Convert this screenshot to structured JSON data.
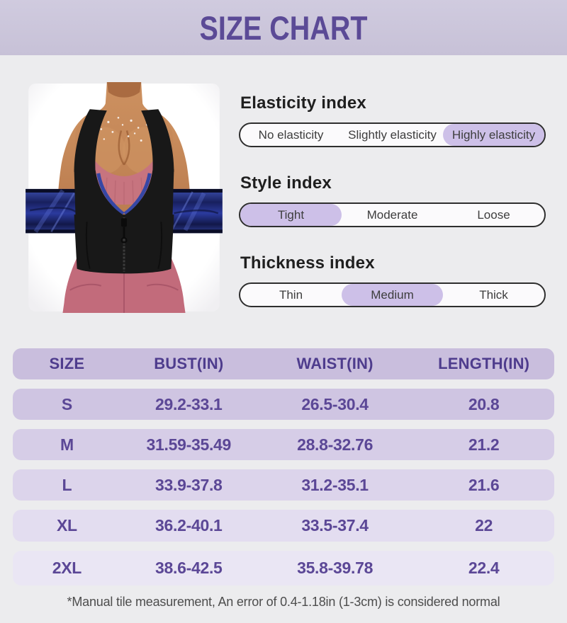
{
  "header": {
    "title": "SIZE CHART"
  },
  "product_photo": {
    "description": "woman wearing black zip-front sauna sweat vest over pink sports bra and leggings, blue satin waist band extended"
  },
  "indexes": [
    {
      "title": "Elasticity index",
      "options": [
        "No elasticity",
        "Slightly elasticity",
        "Highly elasticity"
      ],
      "selected": 2
    },
    {
      "title": "Style index",
      "options": [
        "Tight",
        "Moderate",
        "Loose"
      ],
      "selected": 0
    },
    {
      "title": "Thickness index",
      "options": [
        "Thin",
        "Medium",
        "Thick"
      ],
      "selected": 1
    }
  ],
  "size_table": {
    "columns": [
      "SIZE",
      "BUST(IN)",
      "WAIST(IN)",
      "LENGTH(IN)"
    ],
    "rows": [
      [
        "S",
        "29.2-33.1",
        "26.5-30.4",
        "20.8"
      ],
      [
        "M",
        "31.59-35.49",
        "28.8-32.76",
        "21.2"
      ],
      [
        "L",
        "33.9-37.8",
        "31.2-35.1",
        "21.6"
      ],
      [
        "XL",
        "36.2-40.1",
        "33.5-37.4",
        "22"
      ],
      [
        "2XL",
        "38.6-42.5",
        "35.8-39.78",
        "22.4"
      ]
    ]
  },
  "footnote": "*Manual tile measurement, An error of 0.4-1.18in (1-3cm) is considered normal",
  "colors": {
    "banner_bg": "#cbc5da",
    "banner_text": "#5b4a96",
    "page_bg": "#ececee",
    "highlight_pill": "#cdc0e8",
    "bar_border": "#2e2e2e",
    "table_text": "#5b4796",
    "table_header_bg": "#c9bedd",
    "table_row_bgs": [
      "#cfc5e2",
      "#d6cde7",
      "#dcd4eb",
      "#e3ddf0",
      "#eae6f4"
    ]
  }
}
